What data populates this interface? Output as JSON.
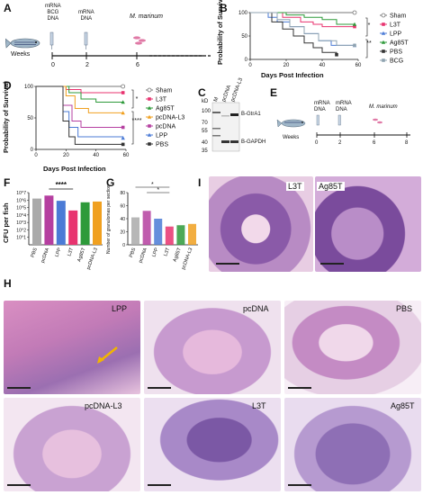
{
  "panels": {
    "A": {
      "letter": "A",
      "timeline": {
        "axis_label": "Weeks",
        "ticks": [
          "0",
          "2",
          "6"
        ],
        "events": [
          {
            "lines": [
              "mRNA",
              "BCG",
              "DNA"
            ]
          },
          {
            "lines": [
              "mRNA",
              "DNA"
            ]
          },
          {
            "lines": [
              "M. marinum"
            ]
          }
        ]
      }
    },
    "B": {
      "letter": "B",
      "ylabel": "Probability of Survival",
      "xlabel": "Days Post Infection",
      "legend": [
        "Sham",
        "L3T",
        "LPP",
        "Ag85T",
        "PBS",
        "BCG"
      ],
      "annotations": [
        "*",
        "**"
      ]
    },
    "C": {
      "letter": "C",
      "lanes": [
        "M",
        "pcDNA",
        "pcDNA-L3"
      ],
      "markers": [
        "kD",
        "100",
        "70",
        "55",
        "40",
        "35"
      ],
      "bands": [
        "B-GtrA1",
        "B-GAPDH"
      ]
    },
    "D": {
      "letter": "D",
      "ylabel": "Probability of Survival",
      "xlabel": "Days Post Infection",
      "legend": [
        "Sham",
        "L3T",
        "Ag85T",
        "pcDNA-L3",
        "pcDNA",
        "LPP",
        "PBS"
      ],
      "annotations": [
        "*",
        "****"
      ]
    },
    "E": {
      "letter": "E",
      "timeline": {
        "axis_label": "Weeks",
        "ticks": [
          "0",
          "2",
          "6",
          "8"
        ],
        "events": [
          {
            "lines": [
              "mRNA",
              "DNA"
            ]
          },
          {
            "lines": [
              "mRNA",
              "DNA"
            ]
          },
          {
            "lines": [
              "M. marinum"
            ]
          }
        ]
      }
    },
    "F": {
      "letter": "F",
      "ylabel": "CFU per fish",
      "categories": [
        "PBS",
        "pcDNA",
        "LPP",
        "L3T",
        "Ag85T",
        "pcDNA-L3"
      ],
      "annotation": "****"
    },
    "G": {
      "letter": "G",
      "ylabel": "Number of granulomas per section",
      "categories": [
        "PBS",
        "pcDNA",
        "LPP",
        "L3T",
        "Ag85T",
        "pcDNA-L3"
      ],
      "annotations": [
        "*",
        "*"
      ]
    },
    "I": {
      "letter": "I",
      "labels": [
        "L3T",
        "Ag85T"
      ]
    },
    "H": {
      "letter": "H",
      "labels": [
        "LPP",
        "pcDNA",
        "PBS",
        "pcDNA-L3",
        "L3T",
        "Ag85T"
      ]
    }
  },
  "colors": {
    "sham": "#777777",
    "l3t": "#e8336f",
    "lpp": "#4b7bd6",
    "ag85t": "#2e9a3a",
    "pbs": "#333333",
    "bcg": "#8fa3b0",
    "pcdna_l3": "#f0a020",
    "pcdna": "#b53fa0",
    "arrow": "#f2b500"
  },
  "chart_data": [
    {
      "panel": "B",
      "type": "line",
      "ylabel": "Probability of Survival",
      "xlabel": "Days Post Infection",
      "xlim": [
        0,
        60
      ],
      "ylim": [
        0,
        100
      ],
      "xticks": [
        0,
        20,
        40,
        60
      ],
      "yticks": [
        0,
        50,
        100
      ],
      "series": [
        {
          "name": "Sham",
          "x": [
            0,
            58
          ],
          "y": [
            100,
            100
          ]
        },
        {
          "name": "L3T",
          "x": [
            0,
            18,
            28,
            35,
            40,
            48,
            58
          ],
          "y": [
            100,
            90,
            80,
            75,
            70,
            70,
            70
          ]
        },
        {
          "name": "LPP",
          "x": [
            0,
            10,
            15,
            22,
            30,
            38,
            45,
            58
          ],
          "y": [
            100,
            90,
            80,
            70,
            55,
            40,
            30,
            30
          ]
        },
        {
          "name": "Ag85T",
          "x": [
            0,
            20,
            30,
            40,
            48,
            58
          ],
          "y": [
            100,
            95,
            90,
            85,
            75,
            75
          ]
        },
        {
          "name": "PBS",
          "x": [
            0,
            12,
            18,
            24,
            30,
            35,
            40,
            48
          ],
          "y": [
            100,
            80,
            65,
            50,
            35,
            25,
            15,
            10
          ]
        },
        {
          "name": "BCG",
          "x": [
            0,
            15,
            22,
            30,
            38,
            48,
            58
          ],
          "y": [
            100,
            85,
            70,
            55,
            40,
            30,
            30
          ]
        }
      ]
    },
    {
      "panel": "D",
      "type": "line",
      "ylabel": "Probability of Survival",
      "xlabel": "Days Post Infection",
      "xlim": [
        0,
        60
      ],
      "ylim": [
        0,
        100
      ],
      "xticks": [
        0,
        20,
        40,
        60
      ],
      "yticks": [
        0,
        50,
        100
      ],
      "series": [
        {
          "name": "Sham",
          "x": [
            0,
            58
          ],
          "y": [
            100,
            100
          ]
        },
        {
          "name": "L3T",
          "x": [
            0,
            20,
            30,
            58
          ],
          "y": [
            100,
            95,
            90,
            90
          ]
        },
        {
          "name": "Ag85T",
          "x": [
            0,
            22,
            30,
            40,
            58
          ],
          "y": [
            100,
            90,
            80,
            75,
            75
          ]
        },
        {
          "name": "pcDNA-L3",
          "x": [
            0,
            20,
            26,
            35,
            58
          ],
          "y": [
            100,
            85,
            65,
            58,
            58
          ]
        },
        {
          "name": "pcDNA",
          "x": [
            0,
            18,
            24,
            30,
            58
          ],
          "y": [
            100,
            70,
            45,
            35,
            35
          ]
        },
        {
          "name": "LPP",
          "x": [
            0,
            18,
            22,
            28,
            58
          ],
          "y": [
            100,
            60,
            35,
            20,
            18
          ]
        },
        {
          "name": "PBS",
          "x": [
            0,
            18,
            22,
            26,
            58
          ],
          "y": [
            100,
            45,
            20,
            8,
            8
          ]
        }
      ]
    },
    {
      "panel": "F",
      "type": "bar",
      "ylabel": "CFU per fish",
      "categories": [
        "PBS",
        "pcDNA",
        "LPP",
        "L3T",
        "Ag85T",
        "pcDNA-L3"
      ],
      "values": [
        6.2,
        6.6,
        5.9,
        4.6,
        5.7,
        5.8
      ],
      "scale": "log10",
      "ylim": [
        0,
        7
      ],
      "yticks": [
        "10^1",
        "10^2",
        "10^3",
        "10^4",
        "10^5",
        "10^6",
        "10^7"
      ]
    },
    {
      "panel": "G",
      "type": "bar",
      "ylabel": "Number of granulomas per section",
      "categories": [
        "PBS",
        "pcDNA",
        "LPP",
        "L3T",
        "Ag85T",
        "pcDNA-L3"
      ],
      "values": [
        42,
        52,
        40,
        28,
        30,
        32
      ],
      "ylim": [
        0,
        80
      ],
      "yticks": [
        0,
        20,
        40,
        60,
        80
      ]
    }
  ]
}
